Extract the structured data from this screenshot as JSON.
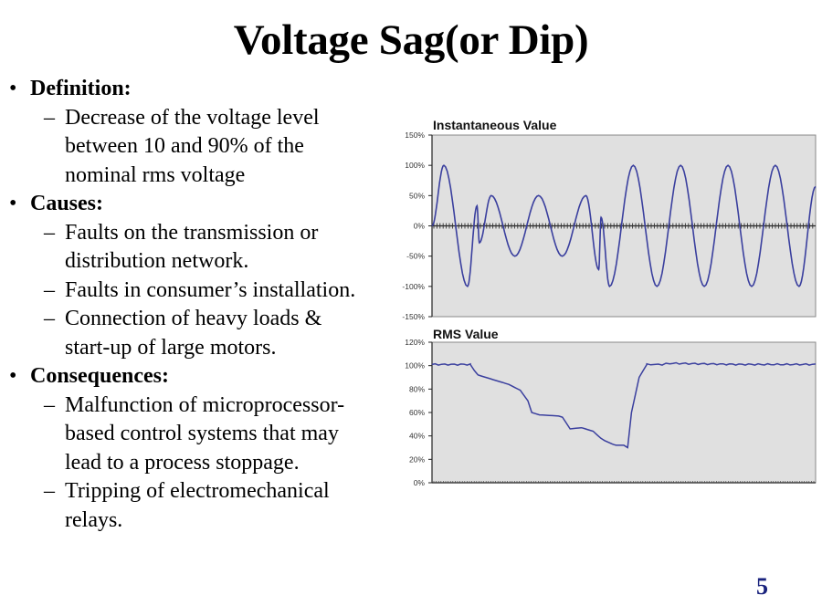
{
  "slide": {
    "title": "Voltage Sag(or Dip)",
    "page_number": "5",
    "bullets": [
      {
        "heading": "Definition:",
        "items": [
          [
            "Decrease of the voltage level",
            "between 10 and 90% of the",
            "nominal rms voltage"
          ]
        ]
      },
      {
        "heading": "Causes:",
        "items": [
          [
            "Faults on the transmission or",
            "distribution network."
          ],
          [
            "Faults in consumer’s installation."
          ],
          [
            "Connection of heavy loads &",
            "start-up of large motors."
          ]
        ]
      },
      {
        "heading": "Consequences:",
        "items": [
          [
            "Malfunction of microprocessor-",
            "based control systems that may",
            "lead to a process stoppage."
          ],
          [
            "Tripping of electromechanical",
            "relays."
          ]
        ]
      }
    ],
    "bullet_glyph": "•",
    "dash_glyph": "–"
  },
  "colors": {
    "line": "#3a3f9e",
    "plot_bg": "#e0e0e0",
    "page_number": "#1a237e"
  },
  "chart_data": [
    {
      "type": "line",
      "title": "Instantaneous Value",
      "xlabel": "",
      "ylabel": "",
      "ylim": [
        -150,
        150
      ],
      "yticks": [
        "150%",
        "100%",
        "50%",
        "0%",
        "-50%",
        "-100%",
        "-150%"
      ],
      "ytick_values": [
        150,
        100,
        50,
        0,
        -50,
        -100,
        -150
      ],
      "grid": false,
      "legend": null,
      "x_cycles": 8.1,
      "description": "Sine waveform: 1 cycle at 100% amplitude, fault transient, ~2.5 cycles at 50% amplitude (sag), fault-clearing transient, then 4.5 cycles back at 100%",
      "series": [
        {
          "name": "Instantaneous voltage",
          "extrema_points": [
            {
              "cycle": 0.0,
              "value": 0
            },
            {
              "cycle": 0.25,
              "value": 100
            },
            {
              "cycle": 0.75,
              "value": -100
            },
            {
              "cycle": 0.95,
              "value": 33
            },
            {
              "cycle": 1.0,
              "value": -28
            },
            {
              "cycle": 1.25,
              "value": 50
            },
            {
              "cycle": 1.75,
              "value": -50
            },
            {
              "cycle": 2.25,
              "value": 50
            },
            {
              "cycle": 2.75,
              "value": -50
            },
            {
              "cycle": 3.25,
              "value": 50
            },
            {
              "cycle": 3.52,
              "value": -72
            },
            {
              "cycle": 3.57,
              "value": 14
            },
            {
              "cycle": 3.75,
              "value": -100
            },
            {
              "cycle": 4.25,
              "value": 100
            },
            {
              "cycle": 4.75,
              "value": -100
            },
            {
              "cycle": 5.25,
              "value": 100
            },
            {
              "cycle": 5.75,
              "value": -100
            },
            {
              "cycle": 6.25,
              "value": 100
            },
            {
              "cycle": 6.75,
              "value": -100
            },
            {
              "cycle": 7.25,
              "value": 100
            },
            {
              "cycle": 7.75,
              "value": -100
            },
            {
              "cycle": 8.1,
              "value": 65
            }
          ]
        }
      ]
    },
    {
      "type": "line",
      "title": "RMS Value",
      "xlabel": "",
      "ylabel": "",
      "ylim": [
        0,
        120
      ],
      "yticks": [
        "120%",
        "100%",
        "80%",
        "60%",
        "40%",
        "20%",
        "0%"
      ],
      "ytick_values": [
        120,
        100,
        80,
        60,
        40,
        20,
        0
      ],
      "grid": false,
      "legend": null,
      "series": [
        {
          "name": "RMS voltage",
          "x": [
            0,
            0.1,
            0.11,
            0.12,
            0.2,
            0.23,
            0.25,
            0.26,
            0.28,
            0.33,
            0.34,
            0.36,
            0.39,
            0.42,
            0.44,
            0.45,
            0.47,
            0.48,
            0.5,
            0.51,
            0.52,
            0.54,
            0.56,
            0.58,
            0.6,
            0.62,
            0.8,
            1.0
          ],
          "values": [
            101,
            101,
            96,
            92,
            84,
            79,
            70,
            60,
            58,
            57,
            56,
            46,
            47,
            44,
            38,
            36,
            33,
            32,
            32,
            30,
            60,
            90,
            101,
            101,
            101,
            102,
            101,
            101
          ]
        }
      ]
    }
  ]
}
